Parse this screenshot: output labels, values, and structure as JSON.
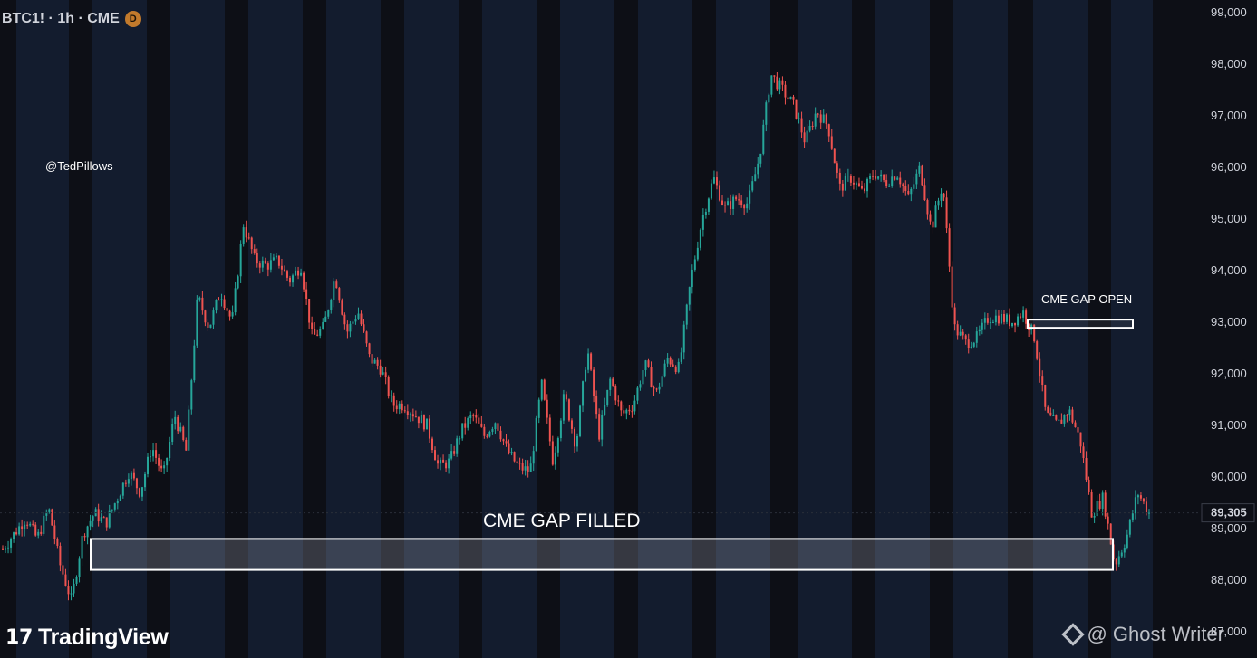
{
  "header": {
    "symbol": "BTC1! · 1h · CME",
    "badge": "D"
  },
  "watermark_handle": "@TedPillows",
  "branding": {
    "logo_mark": "17",
    "logo_text": "TradingView",
    "credit": "@ Ghost Writer"
  },
  "annotations": {
    "gap_filled": "CME GAP FILLED",
    "gap_open": "CME GAP OPEN"
  },
  "price_tag": "89,305",
  "colors": {
    "up": "#26a69a",
    "down": "#ef5350",
    "background": "#0d0f16",
    "session_band": "#131c2e",
    "gap_box_border": "#ffffff"
  },
  "chart_data": {
    "type": "candlestick",
    "title": "BTC1! · 1h · CME",
    "y_axis_position": "right",
    "ylim": [
      87000,
      99000
    ],
    "y_ticks": [
      "99,000",
      "98,000",
      "97,000",
      "96,000",
      "95,000",
      "94,000",
      "93,000",
      "92,000",
      "91,000",
      "90,000",
      "89,000",
      "88,000",
      "87,000"
    ],
    "last_price": 89305,
    "price_path": [
      88600,
      88900,
      89200,
      88800,
      89400,
      88300,
      87600,
      88900,
      89300,
      89100,
      89600,
      90100,
      89700,
      90600,
      90000,
      91200,
      90500,
      93500,
      92900,
      93600,
      93000,
      94900,
      94200,
      94100,
      94200,
      93800,
      94100,
      92700,
      92900,
      93900,
      92800,
      93200,
      92300,
      92100,
      91400,
      91400,
      91200,
      91000,
      90200,
      90300,
      90900,
      91200,
      90800,
      91100,
      90500,
      90200,
      90100,
      91800,
      90300,
      91600,
      90600,
      92500,
      90800,
      91900,
      91200,
      91400,
      92200,
      91600,
      92300,
      92100,
      93800,
      95000,
      95800,
      95200,
      95400,
      95300,
      96200,
      97800,
      97500,
      97200,
      96500,
      97100,
      96800,
      95600,
      95800,
      95500,
      95900,
      95700,
      95900,
      95400,
      96000,
      94800,
      95700,
      92900,
      92600,
      92700,
      93100,
      93100,
      93000,
      93200,
      92700,
      91200,
      91000,
      91300,
      90700,
      89300,
      89600,
      88300,
      88800,
      89700,
      89300
    ],
    "gaps": [
      {
        "label": "CME GAP FILLED",
        "from": 88200,
        "to": 88800,
        "status": "filled"
      },
      {
        "label": "CME GAP OPEN",
        "from": 92900,
        "to": 93050,
        "status": "open"
      }
    ]
  }
}
